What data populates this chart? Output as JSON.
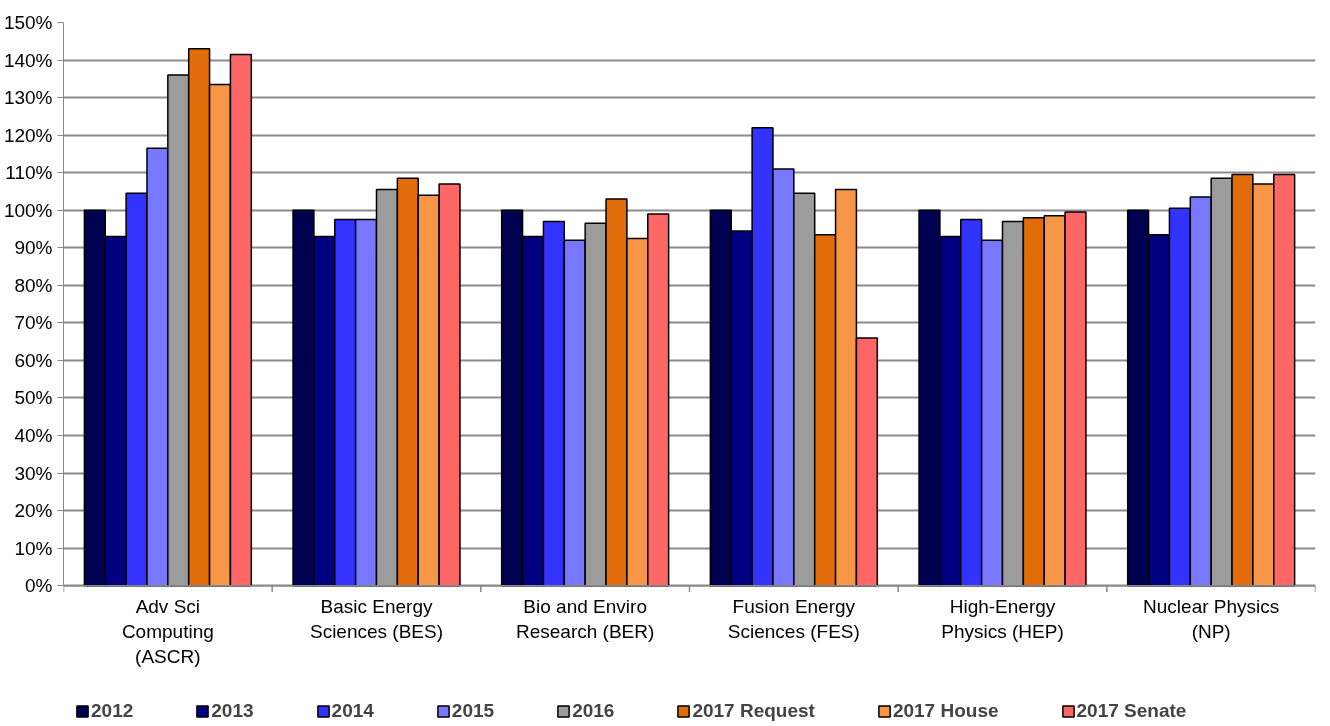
{
  "chart_data": {
    "type": "bar",
    "categories": [
      "Adv Sci Computing (ASCR)",
      "Basic Energy Sciences (BES)",
      "Bio and Enviro Research (BER)",
      "Fusion Energy Sciences (FES)",
      "High-Energy Physics (HEP)",
      "Nuclear Physics (NP)"
    ],
    "series": [
      {
        "name": "2012",
        "color": "#000050",
        "values": [
          100,
          100,
          100,
          100,
          100,
          100
        ]
      },
      {
        "name": "2013",
        "color": "#000080",
        "values": [
          93,
          93,
          93,
          94.5,
          93,
          93.5
        ]
      },
      {
        "name": "2014",
        "color": "#3333ff",
        "values": [
          104.5,
          97.5,
          97,
          122,
          97.5,
          100.5
        ]
      },
      {
        "name": "2015",
        "color": "#7777ff",
        "values": [
          116.5,
          97.5,
          92,
          111,
          92,
          103.5
        ]
      },
      {
        "name": "2016",
        "color": "#9c9c9c",
        "values": [
          136,
          105.5,
          96.5,
          104.5,
          97,
          108.5
        ]
      },
      {
        "name": "2017 Request",
        "color": "#e36c0a",
        "values": [
          143,
          108.5,
          103,
          93.5,
          98,
          109.5
        ]
      },
      {
        "name": "2017 House",
        "color": "#f79646",
        "values": [
          133.5,
          104,
          92.5,
          105.5,
          98.5,
          107
        ]
      },
      {
        "name": "2017 Senate",
        "color": "#ff6666",
        "values": [
          141.5,
          107,
          99,
          66,
          99.5,
          109.5
        ]
      }
    ],
    "ylim": [
      0,
      150
    ],
    "yticks": [
      {
        "value": 0,
        "label": "0%"
      },
      {
        "value": 10,
        "label": "10%"
      },
      {
        "value": 20,
        "label": "20%"
      },
      {
        "value": 30,
        "label": "30%"
      },
      {
        "value": 40,
        "label": "40%"
      },
      {
        "value": 50,
        "label": "50%"
      },
      {
        "value": 60,
        "label": "60%"
      },
      {
        "value": 70,
        "label": "70%"
      },
      {
        "value": 80,
        "label": "80%"
      },
      {
        "value": 90,
        "label": "90%"
      },
      {
        "value": 100,
        "label": "100%"
      },
      {
        "value": 110,
        "label": "110%"
      },
      {
        "value": 120,
        "label": "120%"
      },
      {
        "value": 130,
        "label": "130%"
      },
      {
        "value": 140,
        "label": "140%"
      },
      {
        "value": 150,
        "label": "150%"
      }
    ],
    "grid": "y",
    "legend": "bottom"
  }
}
